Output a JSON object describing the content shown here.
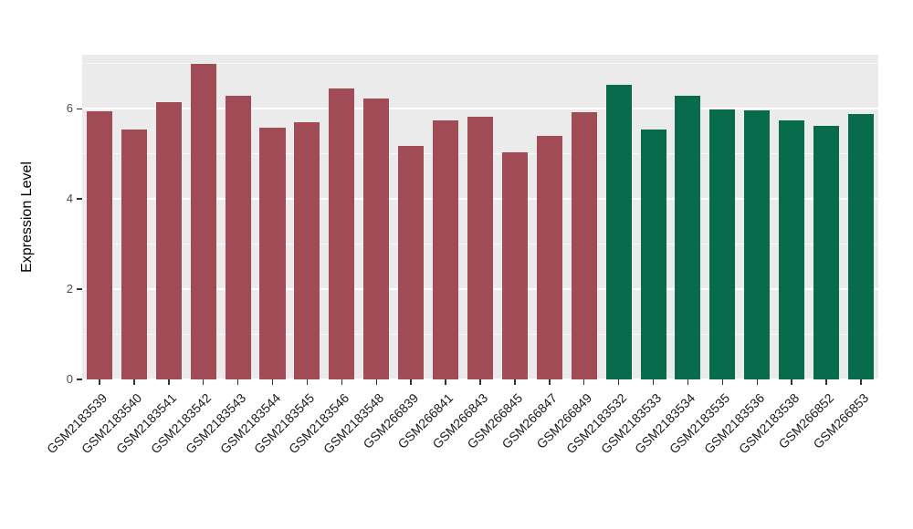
{
  "chart_data": {
    "type": "bar",
    "title": "",
    "xlabel": "",
    "ylabel": "Expression Level",
    "ylim": [
      0,
      7.2
    ],
    "yticks": [
      0,
      2,
      4,
      6
    ],
    "y_minor_gridlines": [
      1,
      3,
      5,
      7
    ],
    "grid": "on",
    "legend_position": "none",
    "panel_background": "#ebebeb",
    "gridline_color": "#ffffff",
    "categories": [
      "GSM2183539",
      "GSM2183540",
      "GSM2183541",
      "GSM2183542",
      "GSM2183543",
      "GSM2183544",
      "GSM2183545",
      "GSM2183546",
      "GSM2183548",
      "GSM266839",
      "GSM266841",
      "GSM266843",
      "GSM266845",
      "GSM266847",
      "GSM266849",
      "GSM2183532",
      "GSM2183533",
      "GSM2183534",
      "GSM2183535",
      "GSM2183536",
      "GSM2183538",
      "GSM266852",
      "GSM266853"
    ],
    "values": [
      5.95,
      5.55,
      6.15,
      7.0,
      6.28,
      5.58,
      5.7,
      6.45,
      6.22,
      5.18,
      5.75,
      5.83,
      5.03,
      5.4,
      5.93,
      6.53,
      5.55,
      6.28,
      5.98,
      5.97,
      5.74,
      5.62,
      5.88
    ],
    "bar_groups": [
      "red",
      "red",
      "red",
      "red",
      "red",
      "red",
      "red",
      "red",
      "red",
      "red",
      "red",
      "red",
      "red",
      "red",
      "red",
      "green",
      "green",
      "green",
      "green",
      "green",
      "green",
      "green",
      "green"
    ],
    "group_colors": {
      "red": "#a04b55",
      "green": "#086c4c"
    }
  }
}
